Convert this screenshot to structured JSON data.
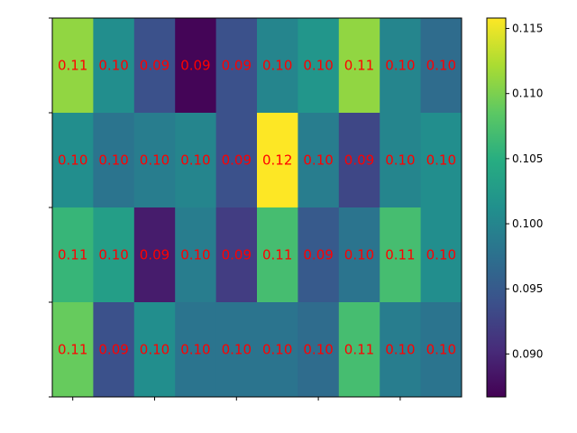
{
  "chart_data": {
    "type": "heatmap",
    "title": "",
    "xlabel": "",
    "ylabel": "",
    "rows": 4,
    "cols": 10,
    "values": [
      [
        0.111,
        0.101,
        0.094,
        0.087,
        0.094,
        0.1,
        0.102,
        0.111,
        0.1,
        0.097
      ],
      [
        0.101,
        0.098,
        0.099,
        0.1,
        0.094,
        0.116,
        0.099,
        0.093,
        0.1,
        0.101
      ],
      [
        0.106,
        0.103,
        0.089,
        0.099,
        0.092,
        0.107,
        0.095,
        0.098,
        0.107,
        0.101
      ],
      [
        0.109,
        0.094,
        0.101,
        0.098,
        0.098,
        0.098,
        0.097,
        0.107,
        0.099,
        0.098
      ]
    ],
    "annotations": [
      [
        "0.11",
        "0.10",
        "0.09",
        "0.09",
        "0.09",
        "0.10",
        "0.10",
        "0.11",
        "0.10",
        "0.10"
      ],
      [
        "0.10",
        "0.10",
        "0.10",
        "0.10",
        "0.09",
        "0.12",
        "0.10",
        "0.09",
        "0.10",
        "0.10"
      ],
      [
        "0.11",
        "0.10",
        "0.09",
        "0.10",
        "0.09",
        "0.11",
        "0.09",
        "0.10",
        "0.11",
        "0.10"
      ],
      [
        "0.11",
        "0.09",
        "0.10",
        "0.10",
        "0.10",
        "0.10",
        "0.10",
        "0.11",
        "0.10",
        "0.10"
      ]
    ],
    "colormap": "viridis",
    "colorbar": {
      "vmin": 0.0867,
      "vmax": 0.1158,
      "ticks": [
        0.09,
        0.095,
        0.1,
        0.105,
        0.11,
        0.115
      ],
      "tick_labels": [
        "0.090",
        "0.095",
        "0.100",
        "0.105",
        "0.110",
        "0.115"
      ]
    },
    "annotation_color": "#ff0000"
  }
}
